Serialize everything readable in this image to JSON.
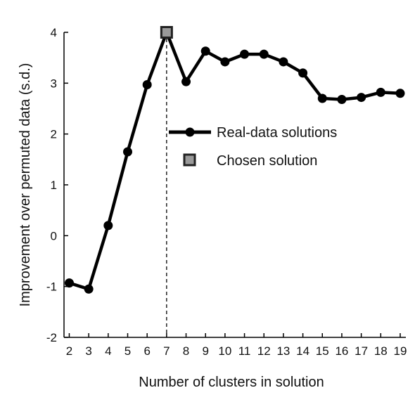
{
  "chart_data": {
    "type": "line",
    "xlabel": "Number of clusters in solution",
    "ylabel": "Improvement over permuted data (s.d.)",
    "xlim": [
      2,
      19
    ],
    "ylim": [
      -2,
      4
    ],
    "x_ticks": [
      "2",
      "3",
      "4",
      "5",
      "6",
      "7",
      "8",
      "9",
      "10",
      "11",
      "12",
      "13",
      "14",
      "15",
      "16",
      "17",
      "18",
      "19"
    ],
    "y_ticks": [
      "-2",
      "-1",
      "0",
      "1",
      "2",
      "3",
      "4"
    ],
    "series": [
      {
        "name": "Real-data solutions",
        "marker": "circle",
        "x": [
          2,
          3,
          4,
          5,
          6,
          7,
          8,
          9,
          10,
          11,
          12,
          13,
          14,
          15,
          16,
          17,
          18,
          19
        ],
        "y": [
          -0.93,
          -1.05,
          0.2,
          1.65,
          2.97,
          4.0,
          3.03,
          3.63,
          3.42,
          3.57,
          3.57,
          3.42,
          3.2,
          2.7,
          2.68,
          2.72,
          2.82,
          2.8
        ]
      },
      {
        "name": "Chosen solution",
        "marker": "square",
        "x": [
          7
        ],
        "y": [
          4.0
        ]
      }
    ],
    "reference_line": {
      "x": 7,
      "style": "dashed"
    },
    "legend_position": "right-middle",
    "grid": false,
    "colors": {
      "line": "#000000",
      "chosen_fill": "#9a9a9a",
      "chosen_edge": "#222222"
    }
  }
}
